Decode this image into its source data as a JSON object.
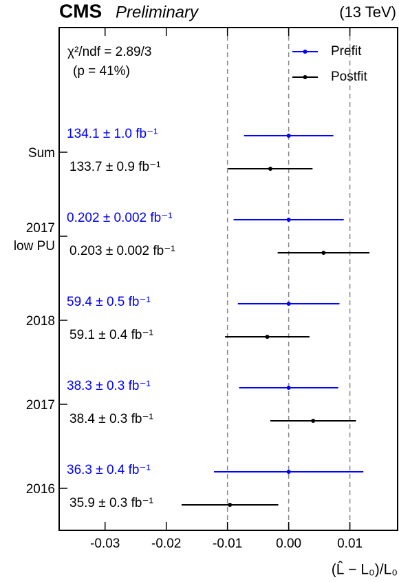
{
  "chart_data": {
    "type": "errorbar",
    "experiment": "CMS",
    "status": "Preliminary",
    "energy": "(13 TeV)",
    "x_label": "(L̂ − L₀)/L₀",
    "annotations": [
      "χ²/ndf = 2.89/3",
      "(p = 41%)"
    ],
    "categories": [
      "Sum",
      "2017 low PU",
      "2018",
      "2017",
      "2016"
    ],
    "series": [
      {
        "name": "Prefit",
        "color": "#0000ff",
        "values": [
          0.0,
          0.0,
          0.0,
          0.0,
          0.0
        ],
        "xerr": [
          0.0073,
          0.009,
          0.0083,
          0.0081,
          0.0122
        ],
        "value_labels": [
          "134.1 ± 1.0 fb⁻¹",
          "0.202 ± 0.002 fb⁻¹",
          "59.4 ± 0.5 fb⁻¹",
          "38.3 ± 0.3 fb⁻¹",
          "36.3 ± 0.4 fb⁻¹"
        ]
      },
      {
        "name": "Postfit",
        "color": "#000000",
        "values": [
          -0.003,
          0.0057,
          -0.0035,
          0.004,
          -0.0096
        ],
        "xerr": [
          0.0069,
          0.0075,
          0.0069,
          0.007,
          0.0079
        ],
        "value_labels": [
          "133.7 ± 0.9 fb⁻¹",
          "0.203 ± 0.002 fb⁻¹",
          "59.1 ± 0.4 fb⁻¹",
          "38.4 ± 0.3 fb⁻¹",
          "35.9 ± 0.3 fb⁻¹"
        ]
      }
    ],
    "xlim": [
      -0.0375,
      0.0178
    ],
    "xticks": [
      -0.03,
      -0.02,
      -0.01,
      {
        "value": 0,
        "label": "0.00"
      },
      0.01
    ],
    "reference_lines": [
      -0.01,
      0,
      0.01
    ],
    "reference_line_color": "#888888",
    "legend": "upper right"
  }
}
